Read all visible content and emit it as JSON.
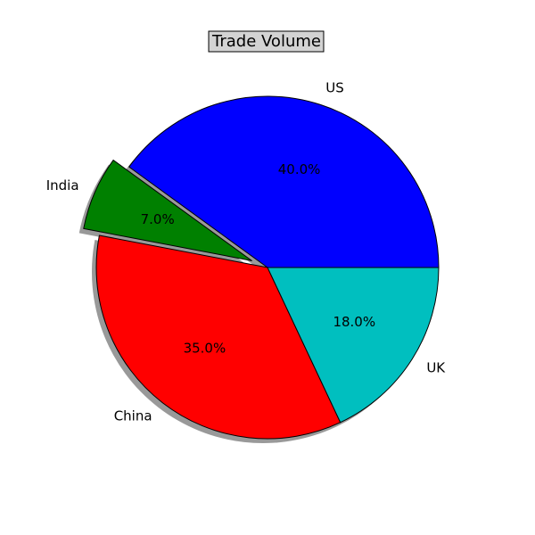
{
  "chart_data": {
    "type": "pie",
    "title": "Trade Volume",
    "slices": [
      {
        "label": "US",
        "value": 40.0,
        "pct_label": "40.0%",
        "color": "#0000ff",
        "explode": false
      },
      {
        "label": "India",
        "value": 7.0,
        "pct_label": "7.0%",
        "color": "#008000",
        "explode": true
      },
      {
        "label": "China",
        "value": 35.0,
        "pct_label": "35.0%",
        "color": "#ff0000",
        "explode": false
      },
      {
        "label": "UK",
        "value": 18.0,
        "pct_label": "18.0%",
        "color": "#00bfbf",
        "explode": false
      }
    ],
    "start_angle_deg": 0,
    "direction": "counterclockwise",
    "shadow": true,
    "title_box": true
  }
}
